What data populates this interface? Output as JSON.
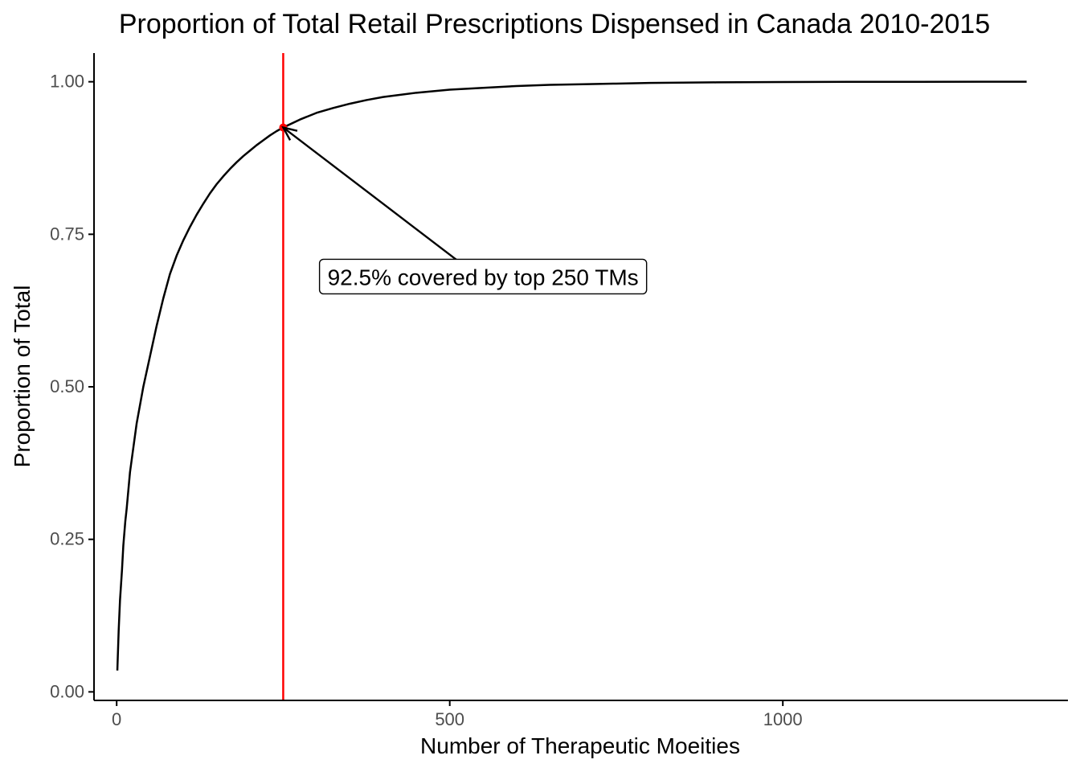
{
  "chart_data": {
    "type": "line",
    "title": "Proportion of Total Retail Prescriptions Dispensed in Canada 2010-2015",
    "xlabel": "Number of Therapeutic Moeities",
    "ylabel": "Proportion of Total",
    "xlim": [
      -34,
      1428
    ],
    "ylim": [
      -0.014,
      1.047
    ],
    "x_ticks": [
      0,
      500,
      1000
    ],
    "x_tick_labels": [
      "0",
      "500",
      "1000"
    ],
    "y_ticks": [
      0,
      0.25,
      0.5,
      0.75,
      1.0
    ],
    "y_tick_labels": [
      "0.00",
      "0.25",
      "0.50",
      "0.75",
      "1.00"
    ],
    "grid": false,
    "series": [
      {
        "x": [
          1,
          3,
          5,
          8,
          10,
          13,
          15,
          20,
          25,
          30,
          40,
          50,
          60,
          70,
          80,
          90,
          100,
          110,
          120,
          130,
          140,
          150,
          160,
          170,
          180,
          190,
          200,
          210,
          220,
          230,
          240,
          250,
          275,
          300,
          325,
          350,
          375,
          400,
          450,
          500,
          550,
          600,
          650,
          700,
          750,
          800,
          900,
          1000,
          1100,
          1200,
          1300,
          1366
        ],
        "y": [
          0.035,
          0.1,
          0.15,
          0.2,
          0.24,
          0.28,
          0.3,
          0.36,
          0.4,
          0.44,
          0.5,
          0.55,
          0.6,
          0.645,
          0.685,
          0.715,
          0.74,
          0.762,
          0.782,
          0.8,
          0.817,
          0.832,
          0.845,
          0.857,
          0.868,
          0.878,
          0.887,
          0.896,
          0.904,
          0.912,
          0.919,
          0.925,
          0.938,
          0.949,
          0.957,
          0.964,
          0.97,
          0.975,
          0.982,
          0.987,
          0.99,
          0.993,
          0.995,
          0.996,
          0.997,
          0.998,
          0.999,
          0.9995,
          0.9998,
          0.9999,
          1.0,
          1.0
        ],
        "color": "#000000"
      }
    ],
    "vline": {
      "x": 250,
      "color": "#ff0000"
    },
    "highlight_point": {
      "x": 250,
      "y": 0.925,
      "color": "#ff0000"
    },
    "annotation": {
      "text": "92.5% covered by top 250 TMs",
      "x": 550,
      "y": 0.68,
      "arrow_from": {
        "x": 520,
        "y": 0.7
      },
      "arrow_to": {
        "x": 250,
        "y": 0.925
      }
    }
  }
}
